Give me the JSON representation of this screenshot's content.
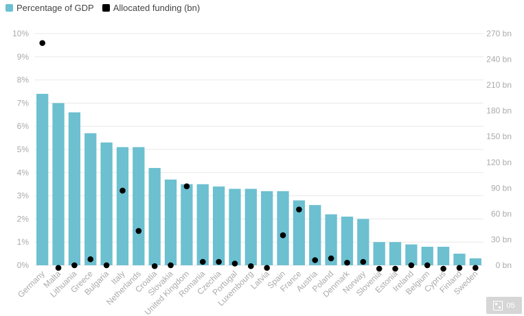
{
  "legend": {
    "gdp_label": "Percentage of GDP",
    "funding_label": "Allocated funding (bn)"
  },
  "colors": {
    "bar": "#6cc0d0",
    "dot": "#000000",
    "grid": "#e8e8e8",
    "axis_text": "#aaaaaa"
  },
  "badge": {
    "icon": "embed-icon",
    "label": "05"
  },
  "chart_data": {
    "type": "bar",
    "title": "",
    "xlabel": "",
    "ylabel": "",
    "categories": [
      "Germany",
      "Malta",
      "Lithuania",
      "Greece",
      "Bulgaria",
      "Italy",
      "Netherlands",
      "Croatia",
      "Slovakia",
      "United Kingdom",
      "Romania",
      "Czechia",
      "Portugal",
      "Luxembourg",
      "Latvia",
      "Spain",
      "France",
      "Austria",
      "Poland",
      "Denmark",
      "Norway",
      "Slovenia",
      "Estonia",
      "Ireland",
      "Belgium",
      "Cyprus",
      "Finland",
      "Sweden"
    ],
    "series": [
      {
        "name": "Percentage of GDP",
        "type": "bar",
        "axis": "left",
        "values": [
          7.4,
          7.0,
          6.6,
          5.7,
          5.3,
          5.1,
          5.1,
          4.2,
          3.7,
          3.5,
          3.5,
          3.4,
          3.3,
          3.3,
          3.2,
          3.2,
          2.8,
          2.6,
          2.2,
          2.1,
          2.0,
          1.0,
          1.0,
          0.9,
          0.8,
          0.8,
          0.5,
          0.3
        ]
      },
      {
        "name": "Allocated funding (bn)",
        "type": "scatter",
        "axis": "right",
        "values": [
          259,
          -3,
          0,
          7,
          0,
          87,
          40,
          -1,
          0,
          92,
          4,
          4,
          2,
          -1,
          -3,
          35,
          65,
          6,
          8,
          3,
          4,
          -4,
          -4,
          0,
          0,
          -4,
          -3,
          -3
        ]
      }
    ],
    "yleft": {
      "ylim": [
        0,
        10
      ],
      "ticks": [
        0,
        1,
        2,
        3,
        4,
        5,
        6,
        7,
        8,
        9,
        10
      ],
      "tick_labels": [
        "0%",
        "1%",
        "2%",
        "3%",
        "4%",
        "5%",
        "6%",
        "7%",
        "8%",
        "9%",
        "10%"
      ]
    },
    "yright": {
      "ylim": [
        0,
        270
      ],
      "ticks": [
        0,
        30,
        60,
        90,
        120,
        150,
        180,
        210,
        240,
        270
      ],
      "tick_labels": [
        "0 bn",
        "30 bn",
        "60 bn",
        "90 bn",
        "120 bn",
        "150 bn",
        "180 bn",
        "210 bn",
        "240 bn",
        "270 bn"
      ]
    },
    "grid": true,
    "legend_position": "top-left"
  }
}
